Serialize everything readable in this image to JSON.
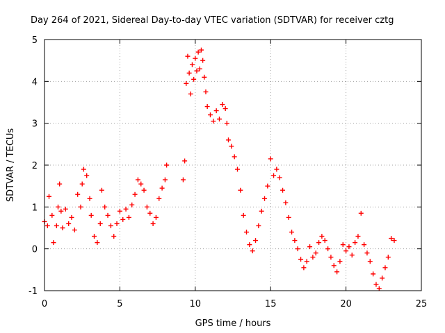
{
  "chart_data": {
    "type": "scatter",
    "title": "Day 264 of 2021, Sidereal Day-to-day VTEC variation (SDTVAR) for receiver cztg",
    "xlabel": "GPS time / hours",
    "ylabel": "SDTVAR / TECUs",
    "xlim": [
      0,
      25
    ],
    "ylim": [
      -1,
      5
    ],
    "xticks": [
      "0",
      "5",
      "10",
      "15",
      "20",
      "25"
    ],
    "yticks": [
      "-1",
      "0",
      "1",
      "2",
      "3",
      "4",
      "5"
    ],
    "grid": true,
    "marker": "+",
    "series": [
      {
        "name": "SDTVAR",
        "color": "#ff0000",
        "points": [
          [
            0.0,
            0.65
          ],
          [
            0.2,
            0.55
          ],
          [
            0.3,
            1.25
          ],
          [
            0.5,
            0.8
          ],
          [
            0.6,
            0.15
          ],
          [
            0.8,
            0.55
          ],
          [
            0.9,
            1.0
          ],
          [
            1.0,
            1.55
          ],
          [
            1.1,
            0.9
          ],
          [
            1.2,
            0.5
          ],
          [
            1.4,
            0.95
          ],
          [
            1.6,
            0.6
          ],
          [
            1.8,
            0.75
          ],
          [
            2.0,
            0.45
          ],
          [
            2.2,
            1.3
          ],
          [
            2.4,
            1.0
          ],
          [
            2.5,
            1.55
          ],
          [
            2.6,
            1.9
          ],
          [
            2.8,
            1.75
          ],
          [
            3.0,
            1.2
          ],
          [
            3.1,
            0.8
          ],
          [
            3.3,
            0.3
          ],
          [
            3.5,
            0.15
          ],
          [
            3.7,
            0.6
          ],
          [
            3.8,
            1.4
          ],
          [
            4.0,
            1.0
          ],
          [
            4.2,
            0.8
          ],
          [
            4.4,
            0.55
          ],
          [
            4.6,
            0.3
          ],
          [
            4.8,
            0.6
          ],
          [
            5.0,
            0.9
          ],
          [
            5.2,
            0.7
          ],
          [
            5.4,
            0.95
          ],
          [
            5.6,
            0.75
          ],
          [
            5.8,
            1.05
          ],
          [
            6.0,
            1.3
          ],
          [
            6.2,
            1.65
          ],
          [
            6.4,
            1.55
          ],
          [
            6.6,
            1.4
          ],
          [
            6.8,
            1.0
          ],
          [
            7.0,
            0.85
          ],
          [
            7.2,
            0.6
          ],
          [
            7.4,
            0.75
          ],
          [
            7.6,
            1.2
          ],
          [
            7.8,
            1.45
          ],
          [
            8.0,
            1.65
          ],
          [
            8.1,
            2.0
          ],
          [
            9.2,
            1.65
          ],
          [
            9.3,
            2.1
          ],
          [
            9.4,
            3.95
          ],
          [
            9.5,
            4.6
          ],
          [
            9.6,
            4.2
          ],
          [
            9.7,
            3.7
          ],
          [
            9.8,
            4.4
          ],
          [
            9.9,
            4.05
          ],
          [
            10.0,
            4.55
          ],
          [
            10.1,
            4.25
          ],
          [
            10.2,
            4.7
          ],
          [
            10.3,
            4.3
          ],
          [
            10.4,
            4.75
          ],
          [
            10.5,
            4.5
          ],
          [
            10.6,
            4.1
          ],
          [
            10.7,
            3.75
          ],
          [
            10.8,
            3.4
          ],
          [
            11.0,
            3.2
          ],
          [
            11.2,
            3.05
          ],
          [
            11.4,
            3.3
          ],
          [
            11.6,
            3.1
          ],
          [
            11.8,
            3.45
          ],
          [
            12.0,
            3.35
          ],
          [
            12.1,
            3.0
          ],
          [
            12.2,
            2.6
          ],
          [
            12.4,
            2.45
          ],
          [
            12.6,
            2.2
          ],
          [
            12.8,
            1.9
          ],
          [
            13.0,
            1.4
          ],
          [
            13.2,
            0.8
          ],
          [
            13.4,
            0.4
          ],
          [
            13.6,
            0.1
          ],
          [
            13.8,
            -0.05
          ],
          [
            14.0,
            0.2
          ],
          [
            14.2,
            0.55
          ],
          [
            14.4,
            0.9
          ],
          [
            14.6,
            1.2
          ],
          [
            14.8,
            1.5
          ],
          [
            15.0,
            2.15
          ],
          [
            15.2,
            1.75
          ],
          [
            15.4,
            1.9
          ],
          [
            15.6,
            1.7
          ],
          [
            15.8,
            1.4
          ],
          [
            16.0,
            1.1
          ],
          [
            16.2,
            0.75
          ],
          [
            16.4,
            0.4
          ],
          [
            16.6,
            0.2
          ],
          [
            16.8,
            0.0
          ],
          [
            17.0,
            -0.25
          ],
          [
            17.2,
            -0.45
          ],
          [
            17.4,
            -0.3
          ],
          [
            17.6,
            0.05
          ],
          [
            17.8,
            -0.2
          ],
          [
            18.0,
            -0.1
          ],
          [
            18.2,
            0.15
          ],
          [
            18.4,
            0.3
          ],
          [
            18.6,
            0.2
          ],
          [
            18.8,
            0.0
          ],
          [
            19.0,
            -0.2
          ],
          [
            19.2,
            -0.4
          ],
          [
            19.4,
            -0.55
          ],
          [
            19.6,
            -0.3
          ],
          [
            19.8,
            0.1
          ],
          [
            20.0,
            -0.05
          ],
          [
            20.2,
            0.05
          ],
          [
            20.4,
            -0.15
          ],
          [
            20.6,
            0.15
          ],
          [
            20.8,
            0.3
          ],
          [
            21.0,
            0.85
          ],
          [
            21.2,
            0.1
          ],
          [
            21.4,
            -0.1
          ],
          [
            21.6,
            -0.3
          ],
          [
            21.8,
            -0.6
          ],
          [
            22.0,
            -0.85
          ],
          [
            22.2,
            -0.95
          ],
          [
            22.4,
            -0.7
          ],
          [
            22.6,
            -0.45
          ],
          [
            22.8,
            -0.2
          ],
          [
            23.0,
            0.25
          ],
          [
            23.2,
            0.2
          ]
        ]
      }
    ]
  }
}
